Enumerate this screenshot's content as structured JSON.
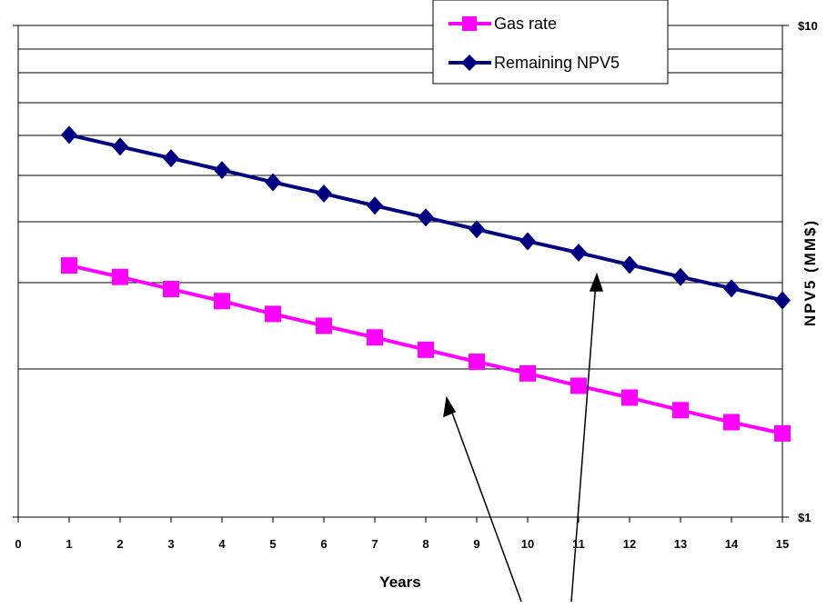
{
  "chart_data": {
    "type": "line",
    "x_label": "Years",
    "y_right_label": "NPV5 (MM$)",
    "x_ticks": [
      "0",
      "1",
      "2",
      "3",
      "4",
      "5",
      "6",
      "7",
      "8",
      "9",
      "10",
      "11",
      "12",
      "13",
      "14",
      "15"
    ],
    "y_right_ticks": [
      "$1",
      "$10"
    ],
    "x_range": [
      0,
      15
    ],
    "y_right_scale": "log",
    "y_right_range": [
      1,
      10
    ],
    "grid": "horizontal",
    "legend_position": "top-right",
    "series": [
      {
        "name": "Gas rate",
        "color": "#ff00ff",
        "marker": "square",
        "x": [
          1,
          2,
          3,
          4,
          5,
          6,
          7,
          8,
          9,
          10,
          11,
          12,
          13,
          14,
          15
        ],
        "values": [
          3.25,
          3.08,
          2.91,
          2.75,
          2.59,
          2.45,
          2.32,
          2.19,
          2.07,
          1.96,
          1.85,
          1.75,
          1.65,
          1.56,
          1.48
        ]
      },
      {
        "name": "Remaining NPV5",
        "color": "#000080",
        "marker": "diamond",
        "x": [
          1,
          2,
          3,
          4,
          5,
          6,
          7,
          8,
          9,
          10,
          11,
          12,
          13,
          14,
          15
        ],
        "values": [
          5.99,
          5.67,
          5.37,
          5.08,
          4.8,
          4.55,
          4.3,
          4.07,
          3.85,
          3.64,
          3.45,
          3.26,
          3.08,
          2.92,
          2.76
        ]
      }
    ]
  }
}
